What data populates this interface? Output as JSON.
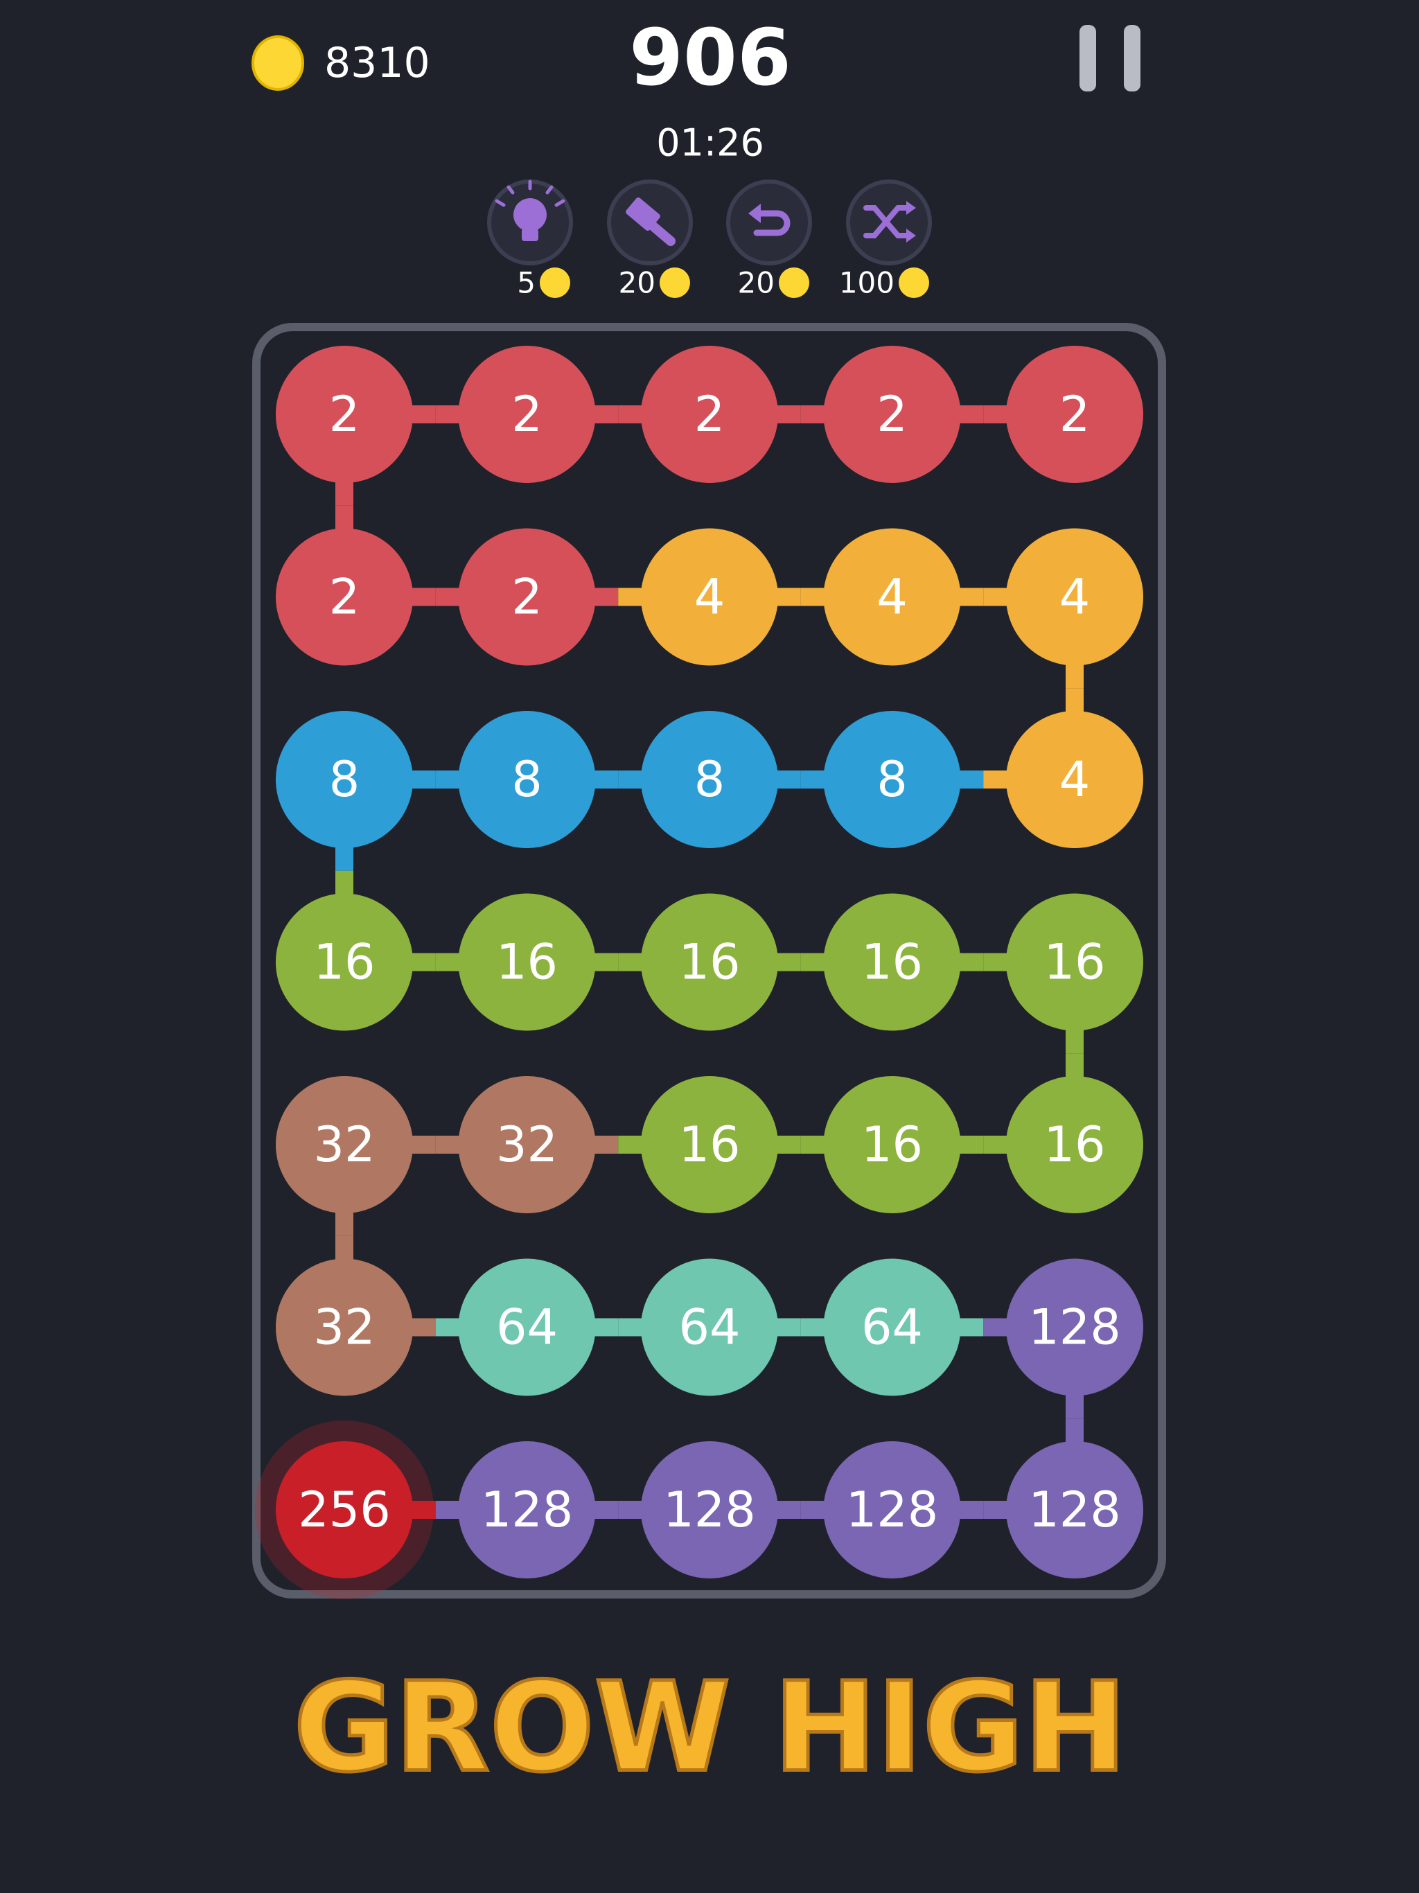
{
  "header": {
    "coins": "8310",
    "score": "906",
    "timer": "01:26"
  },
  "powerups": [
    {
      "name": "hint",
      "cost": "5"
    },
    {
      "name": "hammer",
      "cost": "20"
    },
    {
      "name": "undo",
      "cost": "20"
    },
    {
      "name": "shuffle",
      "cost": "100"
    }
  ],
  "board": {
    "rows": [
      [
        2,
        2,
        2,
        2,
        2
      ],
      [
        2,
        2,
        4,
        4,
        4
      ],
      [
        8,
        8,
        8,
        8,
        4
      ],
      [
        16,
        16,
        16,
        16,
        16
      ],
      [
        32,
        32,
        16,
        16,
        16
      ],
      [
        32,
        64,
        64,
        64,
        128
      ],
      [
        256,
        128,
        128,
        128,
        128
      ]
    ],
    "tile_colors": {
      "2": "#d6505a",
      "4": "#f2b03a",
      "8": "#2e9fd6",
      "16": "#8db33f",
      "32": "#b07862",
      "64": "#6fc7b0",
      "128": "#7a66b2",
      "256": "#c81f28"
    }
  },
  "caption": "GROW HIGH"
}
